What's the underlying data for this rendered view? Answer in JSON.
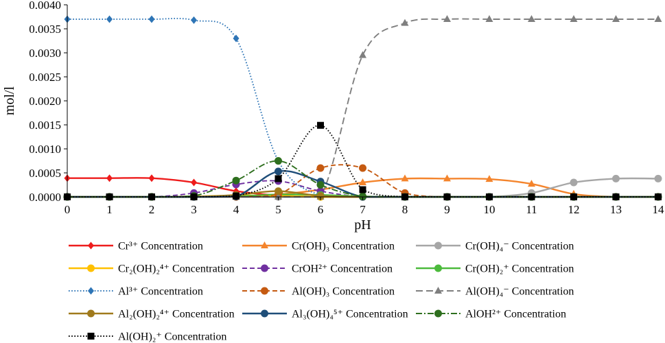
{
  "chart_data": {
    "type": "line",
    "title": "",
    "xlabel": "pH",
    "ylabel": "mol/l",
    "xlim": [
      0,
      14
    ],
    "ylim": [
      0,
      0.004
    ],
    "x_ticks": [
      0,
      1,
      2,
      3,
      4,
      5,
      6,
      7,
      8,
      9,
      10,
      11,
      12,
      13,
      14
    ],
    "x_tick_labels": [
      "0",
      "1",
      "2",
      "3",
      "4",
      "5",
      "6",
      "7",
      "8",
      "9",
      "10",
      "11",
      "12",
      "13",
      "14"
    ],
    "y_ticks": [
      0,
      0.0005,
      0.001,
      0.0015,
      0.002,
      0.0025,
      0.003,
      0.0035,
      0.004
    ],
    "y_tick_labels": [
      "0.0000",
      "0.0005",
      "0.0010",
      "0.0015",
      "0.0020",
      "0.0025",
      "0.0030",
      "0.0035",
      "0.0040"
    ],
    "grid": false,
    "legend_position": "bottom",
    "x": [
      0,
      1,
      2,
      3,
      4,
      5,
      6,
      7,
      8,
      9,
      10,
      11,
      12,
      13,
      14
    ],
    "series": [
      {
        "name": "Cr³⁺ Concentration",
        "color": "#ee1c1c",
        "dash": "solid",
        "marker": "diamond",
        "values": [
          0.00039,
          0.00039,
          0.00039,
          0.0003,
          0.00012,
          3e-05,
          0,
          0,
          0,
          0,
          0,
          0,
          0,
          0,
          0
        ]
      },
      {
        "name": "Cr(OH)₃  Concentration",
        "color": "#f4842c",
        "dash": "solid",
        "marker": "triangle",
        "values": [
          0,
          0,
          0,
          0,
          0,
          5e-05,
          0.00015,
          0.0003,
          0.00038,
          0.00038,
          0.00037,
          0.00027,
          6e-05,
          0,
          0
        ]
      },
      {
        "name": "Cr(OH)₄⁻ Concentration",
        "color": "#a6a6a6",
        "dash": "solid",
        "marker": "circle",
        "values": [
          0,
          0,
          0,
          0,
          0,
          0,
          0,
          0,
          0,
          0,
          0,
          8e-05,
          0.0003,
          0.00038,
          0.00038
        ]
      },
      {
        "name": "Cr₂(OH)₂⁴⁺ Concentration",
        "color": "#ffc000",
        "dash": "solid",
        "marker": "circle",
        "values": [
          0,
          0,
          0,
          1e-05,
          3e-05,
          2e-05,
          0,
          0,
          0,
          0,
          0,
          0,
          0,
          0,
          0
        ]
      },
      {
        "name": "CrOH²⁺ Concentration",
        "color": "#7030a0",
        "dash": "dash",
        "marker": "circle",
        "values": [
          0,
          0,
          0,
          8e-05,
          0.00026,
          0.00033,
          0.00012,
          0,
          0,
          0,
          0,
          0,
          0,
          0,
          0
        ]
      },
      {
        "name": "Cr(OH)₂⁺ Concentration",
        "color": "#4cba3c",
        "dash": "solid",
        "marker": "circle",
        "values": [
          0,
          0,
          0,
          0,
          1e-05,
          5e-05,
          4e-05,
          1e-05,
          0,
          0,
          0,
          0,
          0,
          0,
          0
        ]
      },
      {
        "name": "Al³⁺ Concentration",
        "color": "#2e75b6",
        "dash": "dot",
        "marker": "diamond",
        "values": [
          0.0037,
          0.0037,
          0.0037,
          0.00368,
          0.0033,
          0.00075,
          3e-05,
          0,
          0,
          0,
          0,
          0,
          0,
          0,
          0
        ]
      },
      {
        "name": "Al(OH)₃  Concentration",
        "color": "#c55a11",
        "dash": "dash",
        "marker": "circle",
        "values": [
          0,
          0,
          0,
          0,
          0,
          5e-05,
          0.0006,
          0.0006,
          8e-05,
          0,
          0,
          0,
          0,
          0,
          0
        ]
      },
      {
        "name": "Al(OH)₄⁻ Concentration",
        "color": "#7f7f7f",
        "dash": "longdash",
        "marker": "triangle",
        "values": [
          0,
          0,
          0,
          0,
          0,
          0,
          0,
          0.00295,
          0.00362,
          0.0037,
          0.0037,
          0.0037,
          0.0037,
          0.0037,
          0.0037
        ]
      },
      {
        "name": "Al₂(OH)₂⁴⁺ Concentration",
        "color": "#a07a1c",
        "dash": "solid",
        "marker": "circle",
        "values": [
          0,
          0,
          0,
          0,
          4e-05,
          0.00012,
          2e-05,
          0,
          0,
          0,
          0,
          0,
          0,
          0,
          0
        ]
      },
      {
        "name": "Al₃(OH)₄⁵⁺ Concentration",
        "color": "#1f4e79",
        "dash": "solid",
        "marker": "circle",
        "values": [
          0,
          0,
          0,
          0,
          1e-05,
          0.00053,
          0.00032,
          0,
          0,
          0,
          0,
          0,
          0,
          0,
          0
        ]
      },
      {
        "name": "AlOH²⁺ Concentration",
        "color": "#2e6f1e",
        "dash": "dashdot",
        "marker": "circle",
        "values": [
          0,
          0,
          0,
          2e-05,
          0.00034,
          0.00075,
          0.00025,
          1e-05,
          0,
          0,
          0,
          0,
          0,
          0,
          0
        ]
      },
      {
        "name": "Al(OH)₂⁺ Concentration",
        "color": "#000000",
        "dash": "dot",
        "marker": "square",
        "values": [
          0,
          0,
          0,
          0,
          2e-05,
          0.00038,
          0.00149,
          0.00015,
          0,
          0,
          0,
          0,
          0,
          0,
          0
        ]
      }
    ]
  }
}
